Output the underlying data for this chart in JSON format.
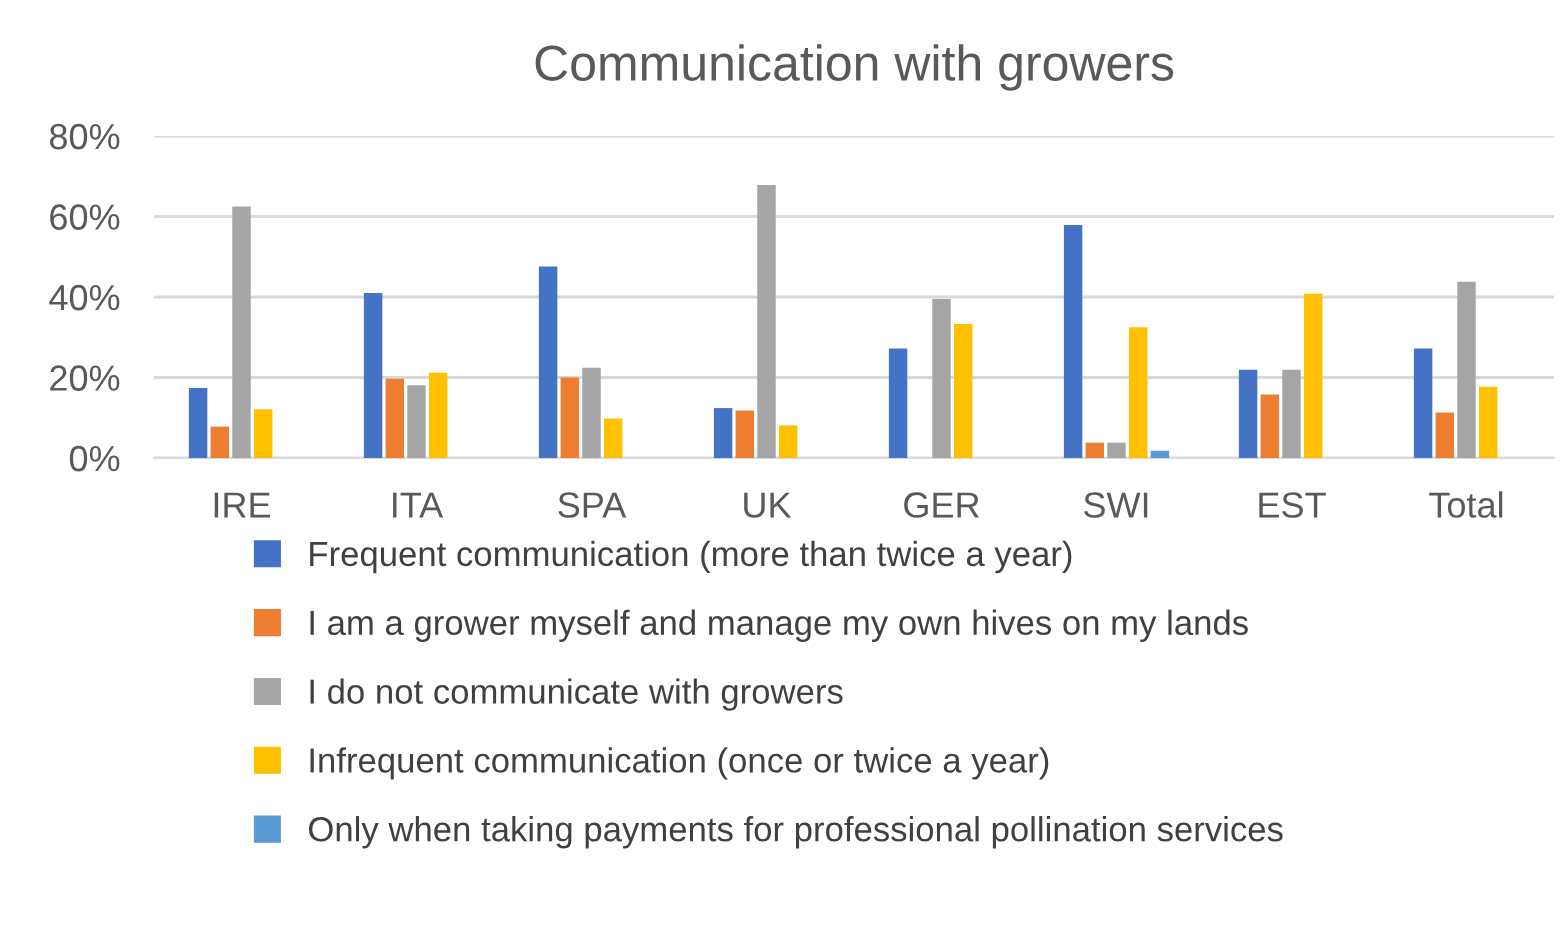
{
  "chart_data": {
    "type": "bar",
    "title": "Communication with growers",
    "categories": [
      "IRE",
      "ITA",
      "SPA",
      "UK",
      "GER",
      "SWI",
      "EST",
      "Total"
    ],
    "series": [
      {
        "name": "Frequent communication (more than twice a year)",
        "color": "#4472c4",
        "values": [
          17.4,
          41,
          47.6,
          12.4,
          27.2,
          57.9,
          21.9,
          27.2
        ]
      },
      {
        "name": "I am a grower myself and manage my own hives on my lands",
        "color": "#ed7d31",
        "values": [
          7.8,
          19.7,
          20,
          11.8,
          0,
          3.8,
          15.8,
          11.3
        ]
      },
      {
        "name": "I do not communicate with growers",
        "color": "#a5a5a5",
        "values": [
          62.5,
          18.1,
          22.4,
          67.8,
          39.5,
          3.8,
          21.9,
          43.8
        ]
      },
      {
        "name": "Infrequent communication (once or twice a year)",
        "color": "#ffc000",
        "values": [
          12.1,
          21.2,
          9.8,
          8.1,
          33.3,
          32.5,
          40.8,
          17.7
        ]
      },
      {
        "name": "Only when taking payments for professional pollination services",
        "color": "#5b9bd5",
        "values": [
          0,
          0,
          0,
          0,
          0,
          1.8,
          0,
          0
        ]
      }
    ],
    "ylim": [
      0,
      80
    ],
    "yticks": [
      {
        "value": 0,
        "label": "0%"
      },
      {
        "value": 20,
        "label": "20%"
      },
      {
        "value": 40,
        "label": "40%"
      },
      {
        "value": 60,
        "label": "60%"
      },
      {
        "value": 80,
        "label": "80%"
      }
    ],
    "grid": "y",
    "legend": "bottom"
  }
}
